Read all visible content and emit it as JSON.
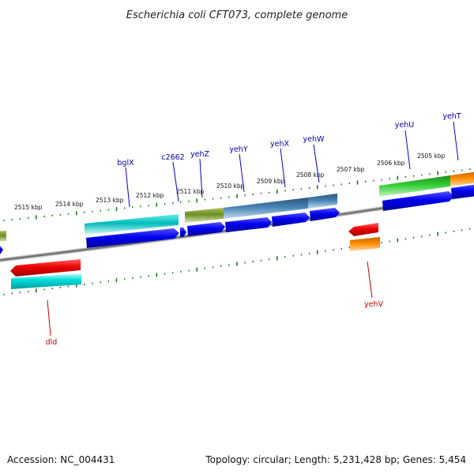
{
  "map": {
    "title": "Escherichia coli CFT073, complete genome",
    "accession": "Accession: NC_004431",
    "summary": "Topology: circular; Length: 5,231,428 bp; Genes: 5,454"
  },
  "scale": {
    "ticks": [
      "2515 kbp",
      "2514 kbp",
      "2513 kbp",
      "2512 kbp",
      "2511 kbp",
      "2510 kbp",
      "2509 kbp",
      "2508 kbp",
      "2507 kbp",
      "2506 kbp",
      "2505 kbp"
    ]
  },
  "genes": [
    {
      "name": "bglX",
      "strand": "forward",
      "color": "#0000aa"
    },
    {
      "name": "c2662",
      "strand": "forward",
      "color": "#0000aa"
    },
    {
      "name": "yehZ",
      "strand": "forward",
      "color": "#0000aa"
    },
    {
      "name": "yehY",
      "strand": "forward",
      "color": "#0000aa"
    },
    {
      "name": "yehX",
      "strand": "forward",
      "color": "#0000aa"
    },
    {
      "name": "yehW",
      "strand": "forward",
      "color": "#0000aa"
    },
    {
      "name": "yehU",
      "strand": "forward",
      "color": "#0000aa"
    },
    {
      "name": "yehT",
      "strand": "forward",
      "color": "#0000aa"
    },
    {
      "name": "dld",
      "strand": "reverse",
      "color": "#cc0000"
    },
    {
      "name": "yehV",
      "strand": "reverse",
      "color": "#cc0000"
    }
  ],
  "colors": {
    "cds_forward": "#0000ee",
    "cds_reverse": "#ee0000",
    "backbone": "#777777",
    "ticks": "#1a7a1a"
  }
}
